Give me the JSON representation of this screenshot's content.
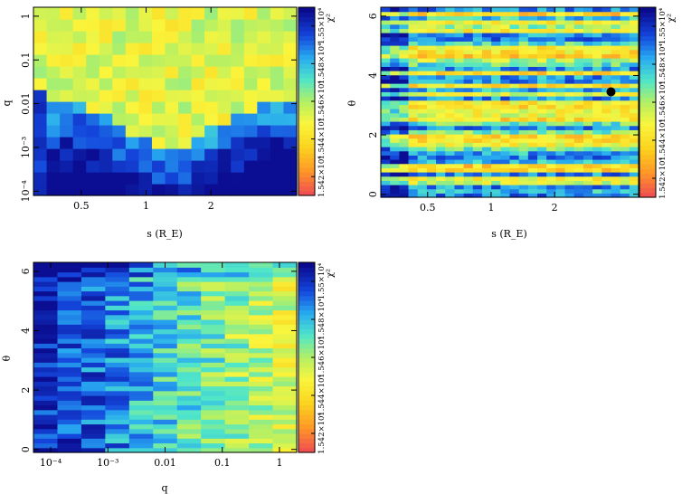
{
  "chart_data": [
    {
      "type": "heatmap",
      "title": "",
      "xlabel": "s (R_E)",
      "ylabel": "q",
      "xscale": "log",
      "yscale": "log",
      "xlim": [
        0.3,
        5.0
      ],
      "ylim": [
        8e-05,
        1.6
      ],
      "xticks": [
        0.5,
        1,
        2
      ],
      "xticklabels": [
        "0.5",
        "1",
        "2"
      ],
      "yticks": [
        0.0001,
        0.001,
        0.01,
        0.1,
        1
      ],
      "yticklabels": [
        "10⁻⁴",
        "10⁻³",
        "0.01",
        "0.1",
        "1"
      ],
      "grid": false,
      "nx": 20,
      "ny": 16,
      "pattern": "valley",
      "colorbar": {
        "label": "χ²",
        "min": 1.542,
        "max": 1.552,
        "ticklabels": [
          "1.542×10⁴",
          "1.544×10⁴",
          "1.546×10⁴",
          "1.548×10⁴",
          "1.55×10⁴"
        ]
      }
    },
    {
      "type": "heatmap",
      "title": "",
      "xlabel": "s (R_E)",
      "ylabel": "θ",
      "xscale": "log",
      "yscale": "linear",
      "xlim": [
        0.3,
        5.0
      ],
      "ylim": [
        -0.1,
        6.3
      ],
      "xticks": [
        0.5,
        1,
        2
      ],
      "xticklabels": [
        "0.5",
        "1",
        "2"
      ],
      "yticks": [
        0,
        2,
        4,
        6
      ],
      "yticklabels": [
        "0",
        "2",
        "4",
        "6"
      ],
      "grid": false,
      "nx": 28,
      "ny": 45,
      "pattern": "stripes",
      "best_fit_marker": {
        "s": 3.7,
        "theta": 3.45
      },
      "colorbar": {
        "label": "χ²",
        "min": 1.542,
        "max": 1.552,
        "ticklabels": [
          "1.542×10⁴",
          "1.544×10⁴",
          "1.546×10⁴",
          "1.548×10⁴",
          "1.55×10⁴"
        ]
      }
    },
    {
      "type": "heatmap",
      "title": "",
      "xlabel": "q",
      "ylabel": "θ",
      "xscale": "log",
      "yscale": "linear",
      "xlim": [
        5e-05,
        2.0
      ],
      "ylim": [
        -0.1,
        6.3
      ],
      "xticks": [
        0.0001,
        0.001,
        0.01,
        0.1,
        1
      ],
      "xticklabels": [
        "10⁻⁴",
        "10⁻³",
        "0.01",
        "0.1",
        "1"
      ],
      "yticks": [
        0,
        2,
        4,
        6
      ],
      "yticklabels": [
        "0",
        "2",
        "4",
        "6"
      ],
      "grid": false,
      "nx": 11,
      "ny": 40,
      "pattern": "gradient",
      "colorbar": {
        "label": "χ²",
        "min": 1.542,
        "max": 1.552,
        "ticklabels": [
          "1.542×10⁴",
          "1.544×10⁴",
          "1.546×10⁴",
          "1.548×10⁴",
          "1.55×10⁴"
        ]
      }
    }
  ]
}
